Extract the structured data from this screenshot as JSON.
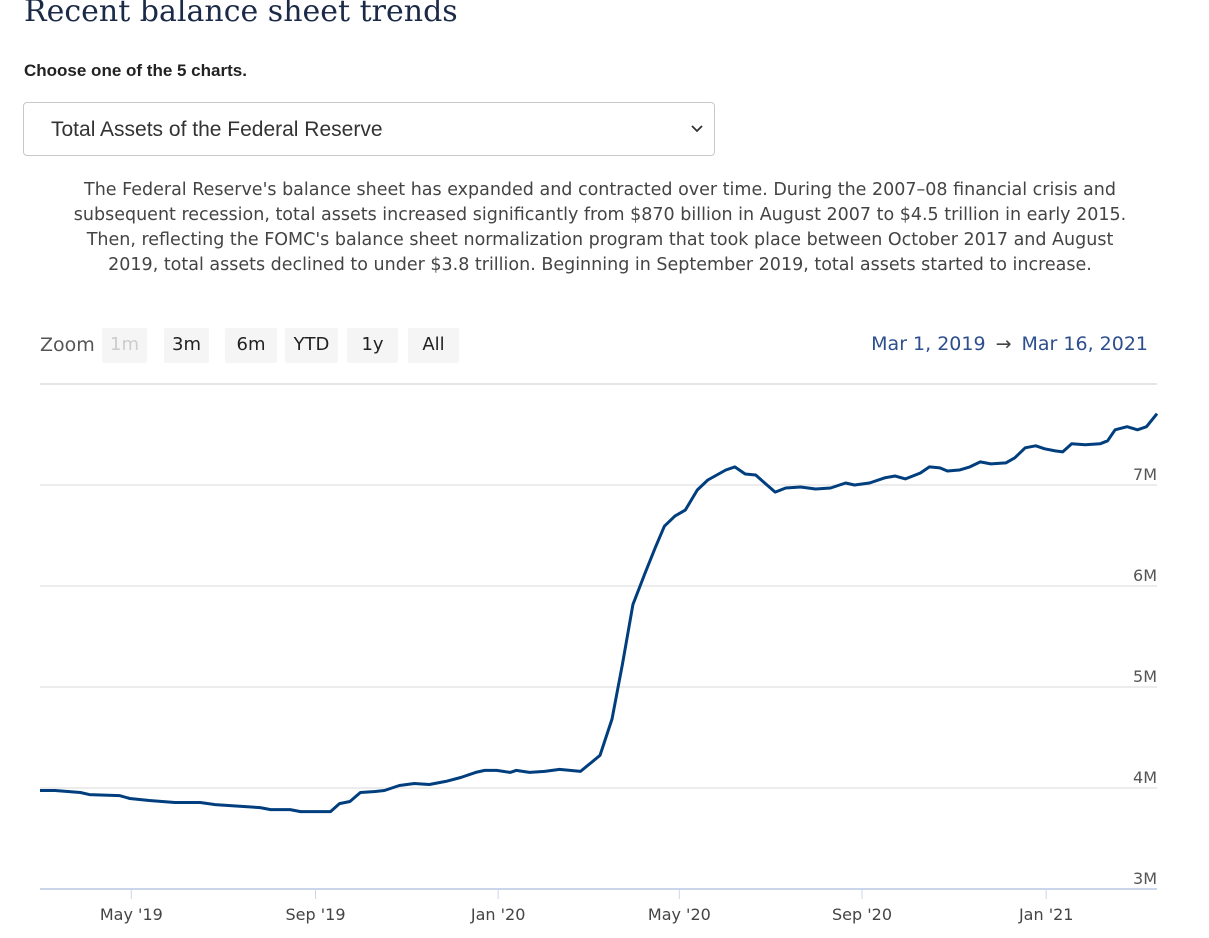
{
  "heading": "Recent balance sheet trends",
  "chooser": {
    "label": "Choose one of the 5 charts.",
    "selected": "Total Assets of the Federal Reserve"
  },
  "description": "The Federal Reserve's balance sheet has expanded and contracted over time. During the 2007–08 financial crisis and subsequent recession, total assets increased significantly from $870 billion in August 2007 to $4.5 trillion in early 2015. Then, reflecting the FOMC's balance sheet normalization program that took place between October 2017 and August 2019, total assets declined to under $3.8 trillion. Beginning in September 2019, total assets started to increase.",
  "zoom": {
    "label": "Zoom",
    "buttons": [
      "1m",
      "3m",
      "6m",
      "YTD",
      "1y",
      "All"
    ],
    "disabled": [
      "1m"
    ]
  },
  "range": {
    "from": "Mar 1, 2019",
    "arrow": "→",
    "to": "Mar 16, 2021"
  },
  "colors": {
    "line": "#003e7e",
    "grid": "#e6e6e6",
    "range": "#2d4f8e"
  },
  "chart_data": {
    "type": "line",
    "title": "Total Assets of the Federal Reserve",
    "x_start": "2019-03-01",
    "x_unit": "days since x_start",
    "x_range": [
      0,
      746
    ],
    "ylim": [
      3,
      8
    ],
    "yticks": [
      {
        "v": 3,
        "label": "3M"
      },
      {
        "v": 4,
        "label": "4M"
      },
      {
        "v": 5,
        "label": "5M"
      },
      {
        "v": 6,
        "label": "6M"
      },
      {
        "v": 7,
        "label": "7M"
      },
      {
        "v": 8,
        "label": ""
      }
    ],
    "xticks": [
      {
        "d": 61,
        "label": "May '19"
      },
      {
        "d": 184,
        "label": "Sep '19"
      },
      {
        "d": 306,
        "label": "Jan '20"
      },
      {
        "d": 427,
        "label": "May '20"
      },
      {
        "d": 549,
        "label": "Sep '20"
      },
      {
        "d": 672,
        "label": "Jan '21"
      }
    ],
    "grid": true,
    "series": [
      {
        "name": "Total Assets",
        "points": [
          [
            0,
            3.975
          ],
          [
            10,
            3.975
          ],
          [
            27,
            3.955
          ],
          [
            33,
            3.935
          ],
          [
            53,
            3.925
          ],
          [
            60,
            3.896
          ],
          [
            73,
            3.876
          ],
          [
            90,
            3.856
          ],
          [
            107,
            3.856
          ],
          [
            117,
            3.836
          ],
          [
            127,
            3.826
          ],
          [
            147,
            3.806
          ],
          [
            154,
            3.786
          ],
          [
            167,
            3.786
          ],
          [
            174,
            3.766
          ],
          [
            194,
            3.766
          ],
          [
            200,
            3.846
          ],
          [
            207,
            3.866
          ],
          [
            214,
            3.955
          ],
          [
            224,
            3.965
          ],
          [
            230,
            3.975
          ],
          [
            240,
            4.025
          ],
          [
            250,
            4.045
          ],
          [
            260,
            4.035
          ],
          [
            271,
            4.065
          ],
          [
            281,
            4.104
          ],
          [
            291,
            4.154
          ],
          [
            297,
            4.174
          ],
          [
            305,
            4.174
          ],
          [
            314,
            4.154
          ],
          [
            318,
            4.174
          ],
          [
            327,
            4.154
          ],
          [
            337,
            4.164
          ],
          [
            347,
            4.184
          ],
          [
            361,
            4.164
          ],
          [
            374,
            4.323
          ],
          [
            382,
            4.682
          ],
          [
            389,
            5.229
          ],
          [
            396,
            5.816
          ],
          [
            404,
            6.124
          ],
          [
            411,
            6.383
          ],
          [
            417,
            6.592
          ],
          [
            424,
            6.692
          ],
          [
            431,
            6.751
          ],
          [
            439,
            6.95
          ],
          [
            446,
            7.05
          ],
          [
            458,
            7.149
          ],
          [
            464,
            7.179
          ],
          [
            471,
            7.109
          ],
          [
            478,
            7.099
          ],
          [
            484,
            7.02
          ],
          [
            491,
            6.93
          ],
          [
            498,
            6.97
          ],
          [
            508,
            6.98
          ],
          [
            518,
            6.96
          ],
          [
            528,
            6.97
          ],
          [
            538,
            7.02
          ],
          [
            544,
            7.0
          ],
          [
            554,
            7.02
          ],
          [
            564,
            7.07
          ],
          [
            571,
            7.089
          ],
          [
            578,
            7.06
          ],
          [
            588,
            7.119
          ],
          [
            594,
            7.179
          ],
          [
            601,
            7.169
          ],
          [
            606,
            7.139
          ],
          [
            614,
            7.149
          ],
          [
            621,
            7.179
          ],
          [
            628,
            7.229
          ],
          [
            635,
            7.209
          ],
          [
            645,
            7.219
          ],
          [
            651,
            7.269
          ],
          [
            658,
            7.368
          ],
          [
            665,
            7.388
          ],
          [
            671,
            7.358
          ],
          [
            678,
            7.338
          ],
          [
            683,
            7.328
          ],
          [
            689,
            7.408
          ],
          [
            698,
            7.398
          ],
          [
            708,
            7.408
          ],
          [
            713,
            7.438
          ],
          [
            718,
            7.547
          ],
          [
            726,
            7.577
          ],
          [
            733,
            7.547
          ],
          [
            739,
            7.577
          ],
          [
            746,
            7.706
          ]
        ]
      }
    ]
  }
}
